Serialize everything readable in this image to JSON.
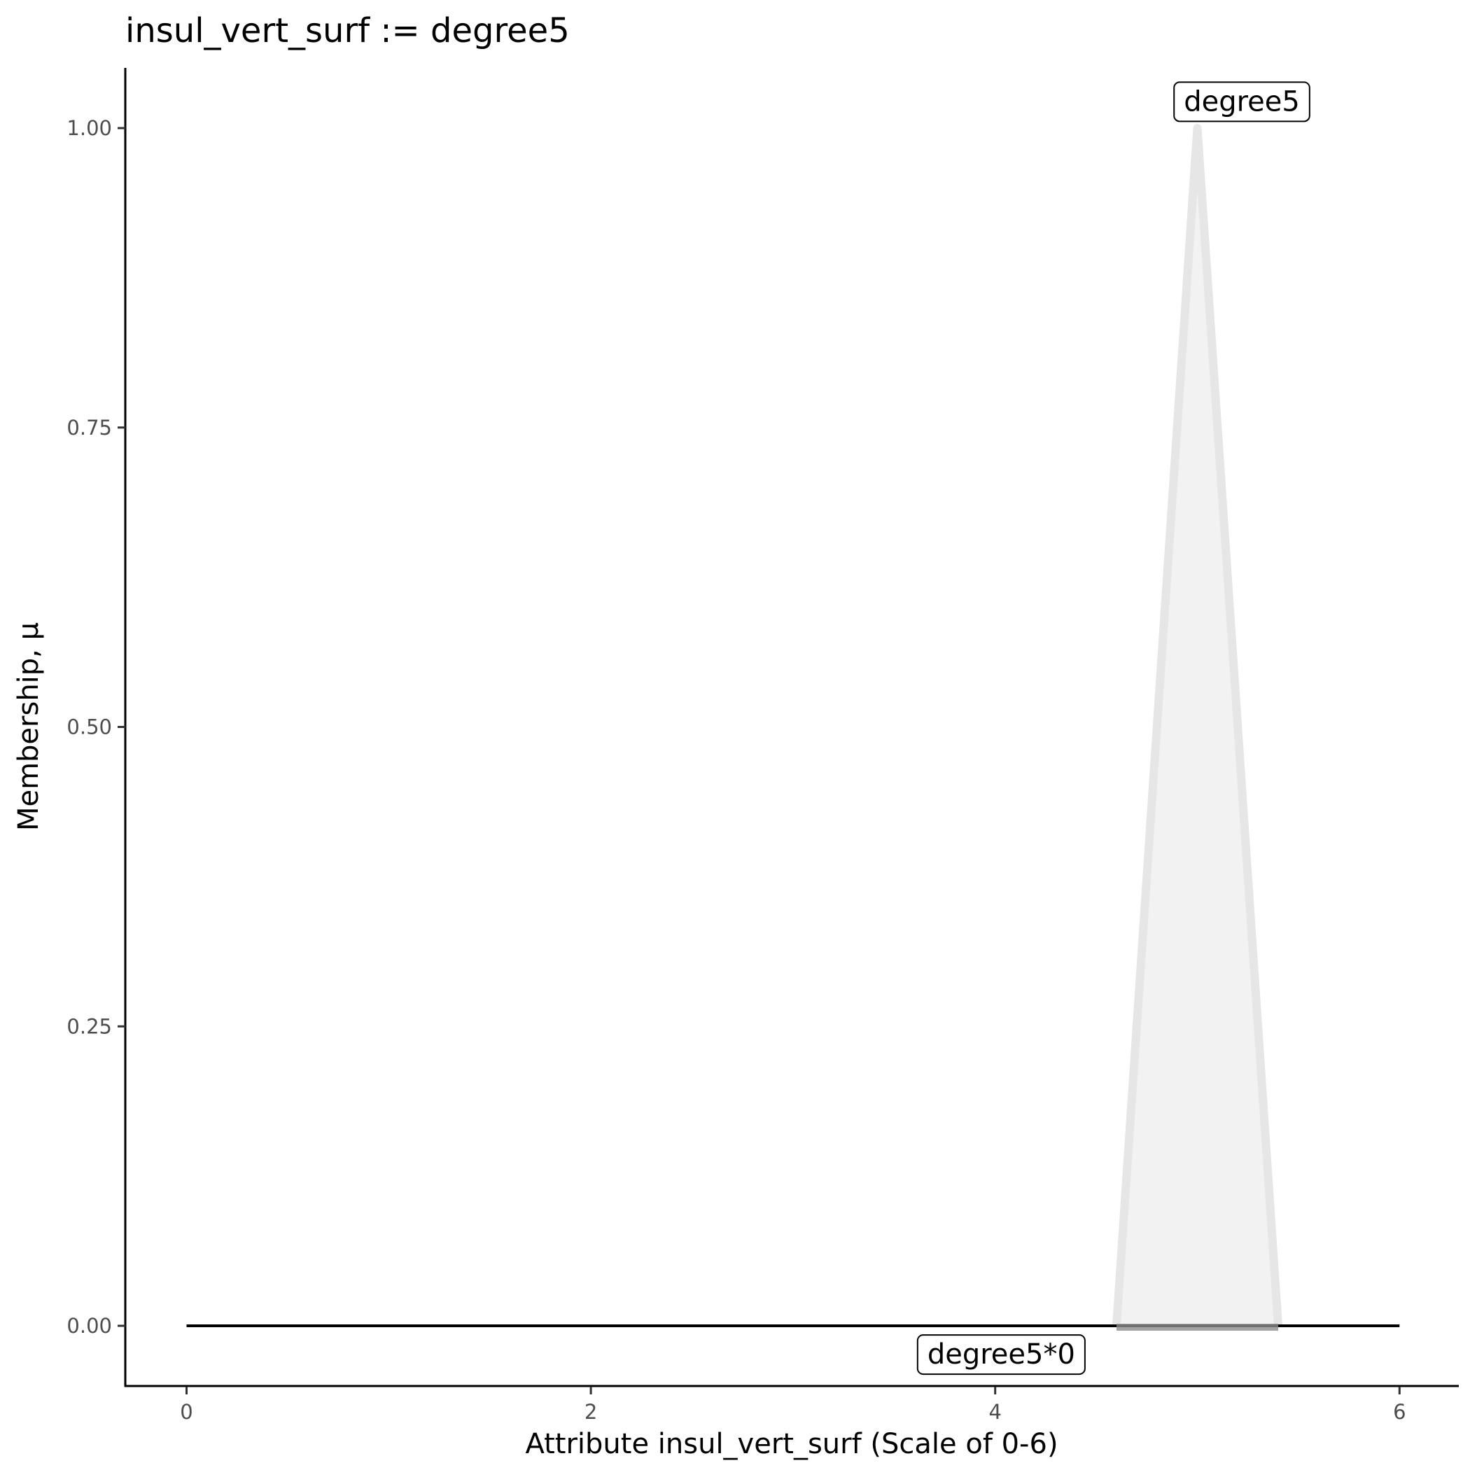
{
  "chart_data": {
    "type": "line",
    "title": "insul_vert_surf := degree5",
    "xlabel": "Attribute insul_vert_surf (Scale of 0-6)",
    "ylabel": "Membership, μ",
    "xlim": [
      -0.3,
      6.3
    ],
    "ylim": [
      -0.05,
      1.05
    ],
    "x_ticks": [
      0,
      2,
      4,
      6
    ],
    "x_tick_labels": [
      "0",
      "2",
      "4",
      "6"
    ],
    "y_ticks": [
      0,
      0.25,
      0.5,
      0.75,
      1.0
    ],
    "y_tick_labels": [
      "0.00",
      "0.25",
      "0.50",
      "0.75",
      "1.00"
    ],
    "grid": false,
    "series": [
      {
        "name": "degree5",
        "x": [
          4.6,
          5.0,
          5.4
        ],
        "y": [
          0,
          1,
          0
        ],
        "color": "#e6e6e6",
        "fill": "#f2f2f2"
      },
      {
        "name": "degree5*0",
        "x": [
          0,
          6
        ],
        "y": [
          0,
          0
        ],
        "color": "#000000"
      }
    ],
    "support_bar": {
      "x": [
        4.6,
        5.4
      ],
      "y": 0,
      "color": "#8c8c8c"
    },
    "annotations": [
      {
        "text": "degree5",
        "x": 5.22,
        "y": 1.022
      },
      {
        "text": "degree5*0",
        "x": 4.03,
        "y": -0.024
      }
    ]
  }
}
